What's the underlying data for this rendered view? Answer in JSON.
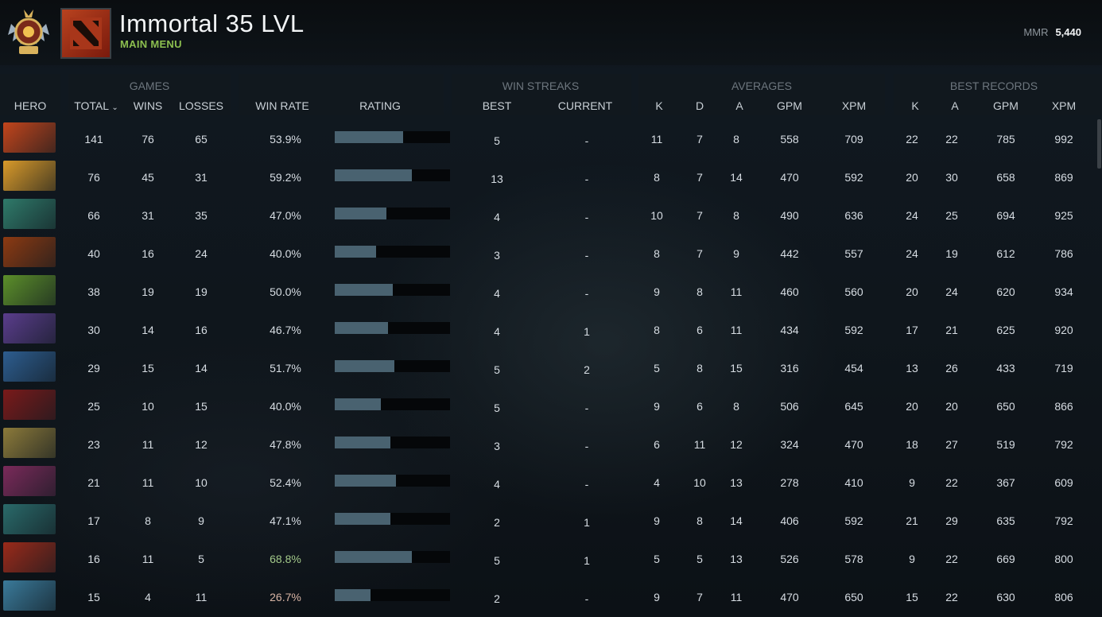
{
  "header": {
    "title": "Immortal 35 LVL",
    "subtitle": "MAIN MENU",
    "mmr_label": "MMR",
    "mmr_value": "5,440"
  },
  "table": {
    "groups": {
      "games": "GAMES",
      "win_streaks": "WIN STREAKS",
      "averages": "AVERAGES",
      "best_records": "BEST RECORDS"
    },
    "columns": {
      "hero": "HERO",
      "total": "TOTAL",
      "wins": "WINS",
      "losses": "LOSSES",
      "win_rate": "WIN RATE",
      "rating": "RATING",
      "best": "BEST",
      "current": "CURRENT",
      "avg_k": "K",
      "avg_d": "D",
      "avg_a": "A",
      "avg_gpm": "GPM",
      "avg_xpm": "XPM",
      "best_k": "K",
      "best_a": "A",
      "best_gpm": "GPM",
      "best_xpm": "XPM"
    },
    "rows": [
      {
        "total": "141",
        "wins": "76",
        "losses": "65",
        "win_rate": "53.9%",
        "rating": 0.59,
        "best": "5",
        "current": "-",
        "k": "11",
        "d": "7",
        "a": "8",
        "gpm": "558",
        "xpm": "709",
        "bk": "22",
        "ba": "22",
        "bgpm": "785",
        "bxpm": "992"
      },
      {
        "total": "76",
        "wins": "45",
        "losses": "31",
        "win_rate": "59.2%",
        "rating": 0.67,
        "best": "13",
        "current": "-",
        "k": "8",
        "d": "7",
        "a": "14",
        "gpm": "470",
        "xpm": "592",
        "bk": "20",
        "ba": "30",
        "bgpm": "658",
        "bxpm": "869"
      },
      {
        "total": "66",
        "wins": "31",
        "losses": "35",
        "win_rate": "47.0%",
        "rating": 0.45,
        "best": "4",
        "current": "-",
        "k": "10",
        "d": "7",
        "a": "8",
        "gpm": "490",
        "xpm": "636",
        "bk": "24",
        "ba": "25",
        "bgpm": "694",
        "bxpm": "925"
      },
      {
        "total": "40",
        "wins": "16",
        "losses": "24",
        "win_rate": "40.0%",
        "rating": 0.36,
        "best": "3",
        "current": "-",
        "k": "8",
        "d": "7",
        "a": "9",
        "gpm": "442",
        "xpm": "557",
        "bk": "24",
        "ba": "19",
        "bgpm": "612",
        "bxpm": "786"
      },
      {
        "total": "38",
        "wins": "19",
        "losses": "19",
        "win_rate": "50.0%",
        "rating": 0.5,
        "best": "4",
        "current": "-",
        "k": "9",
        "d": "8",
        "a": "11",
        "gpm": "460",
        "xpm": "560",
        "bk": "20",
        "ba": "24",
        "bgpm": "620",
        "bxpm": "934"
      },
      {
        "total": "30",
        "wins": "14",
        "losses": "16",
        "win_rate": "46.7%",
        "rating": 0.46,
        "best": "4",
        "current": "1",
        "k": "8",
        "d": "6",
        "a": "11",
        "gpm": "434",
        "xpm": "592",
        "bk": "17",
        "ba": "21",
        "bgpm": "625",
        "bxpm": "920"
      },
      {
        "total": "29",
        "wins": "15",
        "losses": "14",
        "win_rate": "51.7%",
        "rating": 0.52,
        "best": "5",
        "current": "2",
        "k": "5",
        "d": "8",
        "a": "15",
        "gpm": "316",
        "xpm": "454",
        "bk": "13",
        "ba": "26",
        "bgpm": "433",
        "bxpm": "719"
      },
      {
        "total": "25",
        "wins": "10",
        "losses": "15",
        "win_rate": "40.0%",
        "rating": 0.4,
        "best": "5",
        "current": "-",
        "k": "9",
        "d": "6",
        "a": "8",
        "gpm": "506",
        "xpm": "645",
        "bk": "20",
        "ba": "20",
        "bgpm": "650",
        "bxpm": "866"
      },
      {
        "total": "23",
        "wins": "11",
        "losses": "12",
        "win_rate": "47.8%",
        "rating": 0.48,
        "best": "3",
        "current": "-",
        "k": "6",
        "d": "11",
        "a": "12",
        "gpm": "324",
        "xpm": "470",
        "bk": "18",
        "ba": "27",
        "bgpm": "519",
        "bxpm": "792"
      },
      {
        "total": "21",
        "wins": "11",
        "losses": "10",
        "win_rate": "52.4%",
        "rating": 0.53,
        "best": "4",
        "current": "-",
        "k": "4",
        "d": "10",
        "a": "13",
        "gpm": "278",
        "xpm": "410",
        "bk": "9",
        "ba": "22",
        "bgpm": "367",
        "bxpm": "609"
      },
      {
        "total": "17",
        "wins": "8",
        "losses": "9",
        "win_rate": "47.1%",
        "rating": 0.48,
        "best": "2",
        "current": "1",
        "k": "9",
        "d": "8",
        "a": "14",
        "gpm": "406",
        "xpm": "592",
        "bk": "21",
        "ba": "29",
        "bgpm": "635",
        "bxpm": "792"
      },
      {
        "total": "16",
        "wins": "11",
        "losses": "5",
        "win_rate": "68.8%",
        "rating": 0.67,
        "best": "5",
        "current": "1",
        "k": "5",
        "d": "5",
        "a": "13",
        "gpm": "526",
        "xpm": "578",
        "bk": "9",
        "ba": "22",
        "bgpm": "669",
        "bxpm": "800"
      },
      {
        "total": "15",
        "wins": "4",
        "losses": "11",
        "win_rate": "26.7%",
        "rating": 0.31,
        "best": "2",
        "current": "-",
        "k": "9",
        "d": "7",
        "a": "11",
        "gpm": "470",
        "xpm": "650",
        "bk": "15",
        "ba": "22",
        "bgpm": "630",
        "bxpm": "806"
      }
    ]
  },
  "colors": {
    "win_rate_high": "#a3c98a",
    "win_rate_low": "#d8b4a4",
    "bar_fill": "#496270",
    "heroes": [
      "#c2451c",
      "#d99a2a",
      "#2f7a6a",
      "#8c3a12",
      "#5c8f2a",
      "#5a3d8c",
      "#2d5d8f",
      "#7a1a1a",
      "#8c7a3a",
      "#7a2a5a",
      "#2a6a6a",
      "#9a2a1a",
      "#3a7a9a"
    ]
  }
}
